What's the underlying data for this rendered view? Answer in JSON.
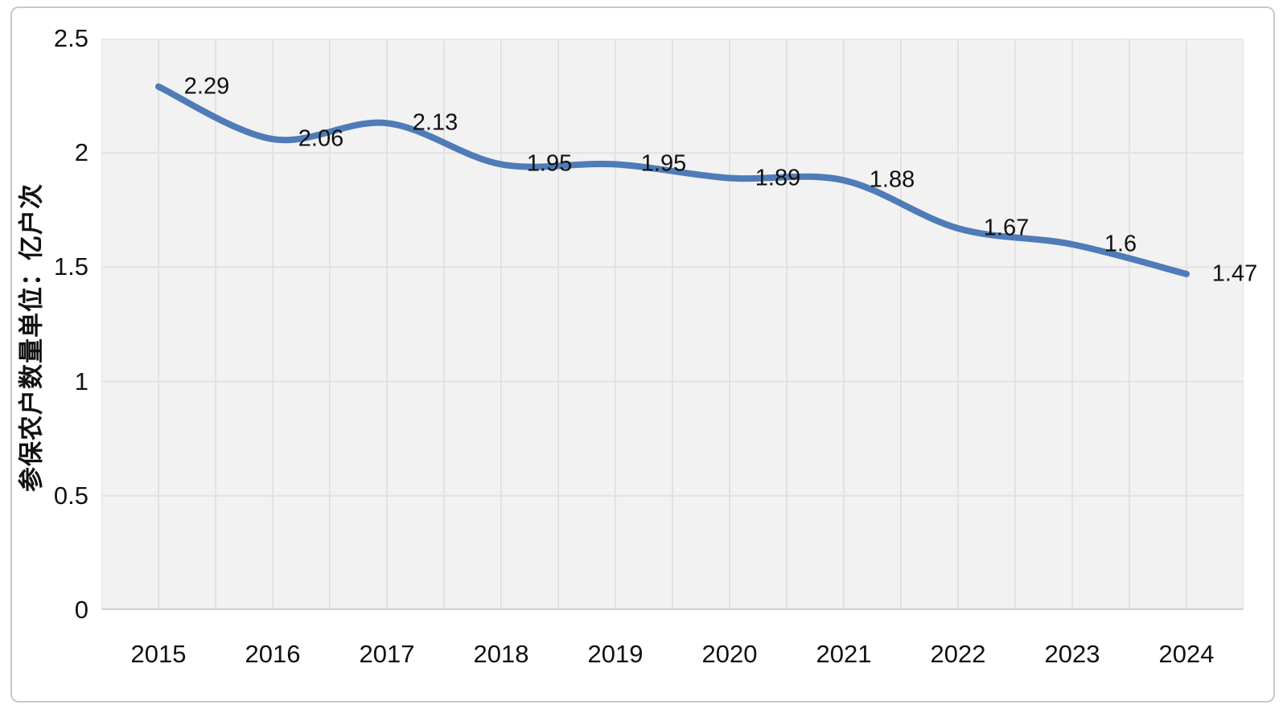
{
  "frame": {
    "border_color": "#c9c9c9",
    "background": "#ffffff"
  },
  "chart_data": {
    "type": "line",
    "title": "",
    "categories": [
      "2015",
      "2016",
      "2017",
      "2018",
      "2019",
      "2020",
      "2021",
      "2022",
      "2023",
      "2024"
    ],
    "series": [
      {
        "values": [
          2.29,
          2.06,
          2.13,
          1.95,
          1.95,
          1.89,
          1.88,
          1.67,
          1.6,
          1.47
        ],
        "data_labels": [
          "2.29",
          "2.06",
          "2.13",
          "1.95",
          "1.95",
          "1.89",
          "1.88",
          "1.67",
          "1.6",
          "1.47"
        ],
        "label_position": "right",
        "color": "#4f7cb8",
        "smooth": true,
        "line_width": 8
      }
    ],
    "xlabel": "",
    "ylabel": "参保农户数量单位：亿户次",
    "ylim": [
      0,
      2.5
    ],
    "ytick_labels": [
      "2.5",
      "2",
      "1.5",
      "1",
      "0.5",
      "0"
    ],
    "ytick_step": 0.5,
    "x_grid_divisions": 20,
    "grid": true,
    "legend": false,
    "plot_bg": "#f2f2f2",
    "grid_color": "#e2e2e2",
    "axis_line_color": "#d2d2d2",
    "text_color": "#111111"
  }
}
